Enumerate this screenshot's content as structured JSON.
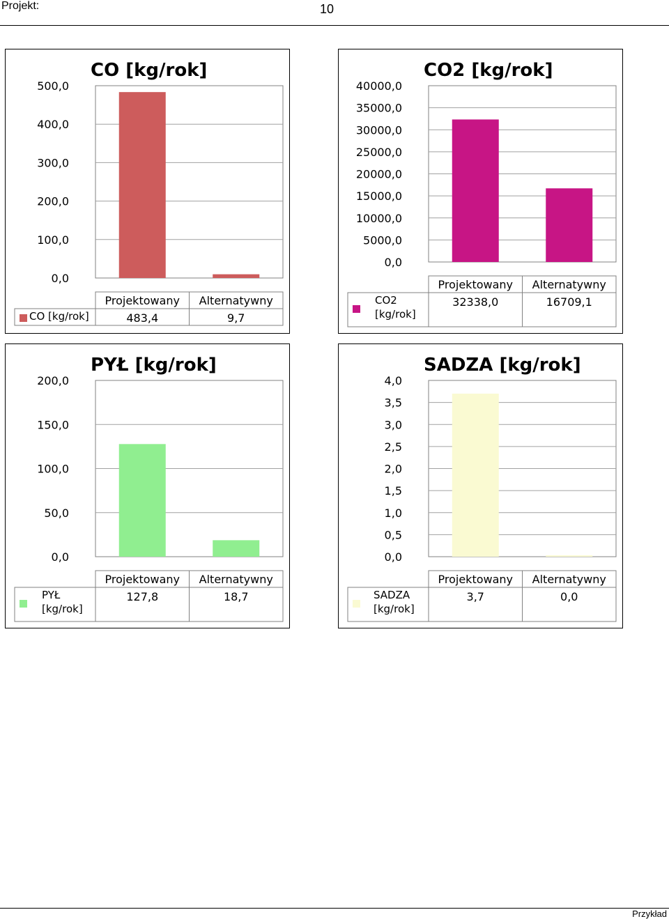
{
  "header": {
    "label": "Projekt:",
    "page_number": "10"
  },
  "footer": {
    "text": "Przykład"
  },
  "chart_data": [
    {
      "type": "bar",
      "title": "CO [kg/rok]",
      "categories": [
        "Projektowany",
        "Alternatywny"
      ],
      "series": [
        {
          "name": "CO [kg/rok]",
          "values": [
            483.4,
            9.7
          ],
          "color": "#cd5c5c"
        }
      ],
      "value_labels": [
        "483,4",
        "9,7"
      ],
      "ylim": [
        0,
        500
      ],
      "y_ticks": [
        0,
        100,
        200,
        300,
        400,
        500
      ],
      "y_tick_labels": [
        "0,0",
        "100,0",
        "200,0",
        "300,0",
        "400,0",
        "500,0"
      ],
      "grid": true,
      "legend": "bottom-left data table"
    },
    {
      "type": "bar",
      "title": "CO2 [kg/rok]",
      "categories": [
        "Projektowany",
        "Alternatywny"
      ],
      "series": [
        {
          "name": "CO2\n[kg/rok]",
          "values": [
            32338.0,
            16709.1
          ],
          "color": "#c71585"
        }
      ],
      "value_labels": [
        "32338,0",
        "16709,1"
      ],
      "ylim": [
        0,
        40000
      ],
      "y_ticks": [
        0,
        5000,
        10000,
        15000,
        20000,
        25000,
        30000,
        35000,
        40000
      ],
      "y_tick_labels": [
        "0,0",
        "5000,0",
        "10000,0",
        "15000,0",
        "20000,0",
        "25000,0",
        "30000,0",
        "35000,0",
        "40000,0"
      ],
      "grid": true,
      "legend": "bottom-left data table"
    },
    {
      "type": "bar",
      "title": "PYŁ [kg/rok]",
      "categories": [
        "Projektowany",
        "Alternatywny"
      ],
      "series": [
        {
          "name": "PYŁ\n[kg/rok]",
          "values": [
            127.8,
            18.7
          ],
          "color": "#90ee90"
        }
      ],
      "value_labels": [
        "127,8",
        "18,7"
      ],
      "ylim": [
        0,
        200
      ],
      "y_ticks": [
        0,
        50,
        100,
        150,
        200
      ],
      "y_tick_labels": [
        "0,0",
        "50,0",
        "100,0",
        "150,0",
        "200,0"
      ],
      "grid": true,
      "legend": "bottom-left data table"
    },
    {
      "type": "bar",
      "title": "SADZA [kg/rok]",
      "categories": [
        "Projektowany",
        "Alternatywny"
      ],
      "series": [
        {
          "name": "SADZA\n[kg/rok]",
          "values": [
            3.7,
            0.0
          ],
          "color": "#fafad2"
        }
      ],
      "value_labels": [
        "3,7",
        "0,0"
      ],
      "ylim": [
        0,
        4
      ],
      "y_ticks": [
        0,
        0.5,
        1,
        1.5,
        2,
        2.5,
        3,
        3.5,
        4
      ],
      "y_tick_labels": [
        "0,0",
        "0,5",
        "1,0",
        "1,5",
        "2,0",
        "2,5",
        "3,0",
        "3,5",
        "4,0"
      ],
      "grid": true,
      "legend": "bottom-left data table"
    }
  ]
}
